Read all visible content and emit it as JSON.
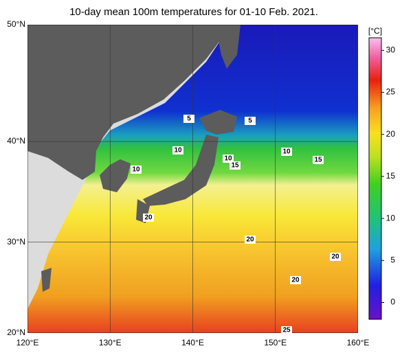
{
  "title": "10-day mean 100m temperatures for 01-10 Feb. 2021.",
  "map": {
    "lon_lim": [
      120,
      160
    ],
    "lat_lim": [
      20,
      50
    ],
    "lon_ticks": [
      {
        "value": 120,
        "label": "120°E"
      },
      {
        "value": 130,
        "label": "130°E"
      },
      {
        "value": 140,
        "label": "140°E"
      },
      {
        "value": 150,
        "label": "150°E"
      },
      {
        "value": 160,
        "label": "160°E"
      }
    ],
    "lat_ticks": [
      {
        "value": 20,
        "label": "20°N"
      },
      {
        "value": 30,
        "label": "30°N"
      },
      {
        "value": 40,
        "label": "40°N"
      },
      {
        "value": 50,
        "label": "50°N"
      }
    ],
    "contour_labels": [
      5,
      5,
      10,
      10,
      10,
      10,
      15,
      15,
      20,
      20,
      20,
      20,
      25
    ]
  },
  "colorbar": {
    "unit": "[°C]",
    "lim": [
      -2,
      31.5
    ],
    "ticks": [
      0,
      5,
      10,
      15,
      20,
      25,
      30
    ]
  }
}
